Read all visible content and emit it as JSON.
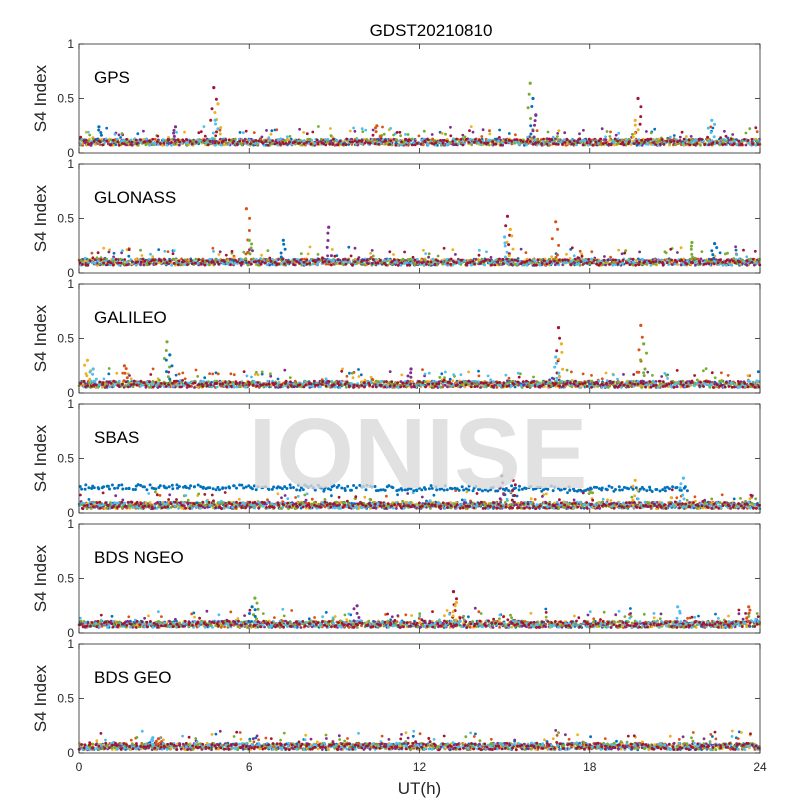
{
  "figure": {
    "title": "GDST20210810"
  },
  "watermark": "IONISE",
  "colors": {
    "series": [
      "#0072BD",
      "#D95319",
      "#EDB120",
      "#7E2F8E",
      "#77AC30",
      "#4DBEEE",
      "#A2142F"
    ],
    "axis": "#262626",
    "watermark": "#d9d9d9"
  },
  "chart_data": [
    {
      "type": "scatter",
      "panel": "GPS",
      "label": "GPS",
      "ylabel": "S4 Index",
      "xlim": [
        0,
        24
      ],
      "ylim": [
        0,
        1
      ],
      "yticks": [
        "0",
        "0.5",
        "1"
      ],
      "baseline": 0.1,
      "spikes": [
        {
          "x": 0.7,
          "y": 0.24
        },
        {
          "x": 3.4,
          "y": 0.24
        },
        {
          "x": 4.75,
          "y": 0.6
        },
        {
          "x": 4.9,
          "y": 0.45
        },
        {
          "x": 4.8,
          "y": 0.3
        },
        {
          "x": 10.5,
          "y": 0.25
        },
        {
          "x": 15.9,
          "y": 0.64
        },
        {
          "x": 16.0,
          "y": 0.5
        },
        {
          "x": 16.1,
          "y": 0.35
        },
        {
          "x": 19.7,
          "y": 0.5
        },
        {
          "x": 19.6,
          "y": 0.3
        },
        {
          "x": 22.3,
          "y": 0.3
        }
      ]
    },
    {
      "type": "scatter",
      "panel": "GLONASS",
      "label": "GLONASS",
      "ylabel": "S4 Index",
      "xlim": [
        0,
        24
      ],
      "ylim": [
        0,
        1
      ],
      "yticks": [
        "0",
        "0.5",
        "1"
      ],
      "baseline": 0.1,
      "spikes": [
        {
          "x": 5.9,
          "y": 0.59
        },
        {
          "x": 6.0,
          "y": 0.3
        },
        {
          "x": 7.2,
          "y": 0.3
        },
        {
          "x": 8.8,
          "y": 0.42
        },
        {
          "x": 15.1,
          "y": 0.52
        },
        {
          "x": 15.2,
          "y": 0.4
        },
        {
          "x": 15.0,
          "y": 0.33
        },
        {
          "x": 16.8,
          "y": 0.47
        },
        {
          "x": 21.6,
          "y": 0.28
        },
        {
          "x": 22.4,
          "y": 0.27
        }
      ]
    },
    {
      "type": "scatter",
      "panel": "GALILEO",
      "label": "GALILEO",
      "ylabel": "S4 Index",
      "xlim": [
        0,
        24
      ],
      "ylim": [
        0,
        1
      ],
      "yticks": [
        "0",
        "0.5",
        "1"
      ],
      "baseline": 0.08,
      "spikes": [
        {
          "x": 0.3,
          "y": 0.3
        },
        {
          "x": 0.5,
          "y": 0.22
        },
        {
          "x": 1.6,
          "y": 0.25
        },
        {
          "x": 3.1,
          "y": 0.47
        },
        {
          "x": 3.2,
          "y": 0.35
        },
        {
          "x": 11.7,
          "y": 0.22
        },
        {
          "x": 16.9,
          "y": 0.6
        },
        {
          "x": 17.0,
          "y": 0.45
        },
        {
          "x": 16.8,
          "y": 0.33
        },
        {
          "x": 19.8,
          "y": 0.62
        },
        {
          "x": 19.9,
          "y": 0.45
        }
      ]
    },
    {
      "type": "scatter",
      "panel": "SBAS",
      "label": "SBAS",
      "ylabel": "S4 Index",
      "xlim": [
        0,
        24
      ],
      "ylim": [
        0,
        1
      ],
      "yticks": [
        "0",
        "0.5",
        "1"
      ],
      "baseline": 0.07,
      "bands": [
        {
          "series": 0,
          "from": 0,
          "to": 21.5,
          "level_start": 0.24,
          "level_end": 0.22
        }
      ],
      "spikes": [
        {
          "x": 14.9,
          "y": 0.34
        },
        {
          "x": 15.3,
          "y": 0.3
        },
        {
          "x": 19.6,
          "y": 0.3
        },
        {
          "x": 21.3,
          "y": 0.32
        }
      ]
    },
    {
      "type": "scatter",
      "panel": "BDS NGEO",
      "label": "BDS NGEO",
      "ylabel": "S4 Index",
      "xlim": [
        0,
        24
      ],
      "ylim": [
        0,
        1
      ],
      "yticks": [
        "0",
        "0.5",
        "1"
      ],
      "baseline": 0.08,
      "spikes": [
        {
          "x": 6.2,
          "y": 0.32
        },
        {
          "x": 6.1,
          "y": 0.24
        },
        {
          "x": 9.8,
          "y": 0.25
        },
        {
          "x": 13.2,
          "y": 0.38
        },
        {
          "x": 13.3,
          "y": 0.28
        },
        {
          "x": 21.1,
          "y": 0.24
        },
        {
          "x": 23.6,
          "y": 0.24
        }
      ]
    },
    {
      "type": "scatter",
      "panel": "BDS GEO",
      "label": "BDS GEO",
      "ylabel": "S4 Index",
      "xlim": [
        0,
        24
      ],
      "ylim": [
        0,
        1
      ],
      "yticks": [
        "0",
        "0.5",
        "1"
      ],
      "baseline": 0.06,
      "spikes": [
        {
          "x": 2.6,
          "y": 0.14
        },
        {
          "x": 2.8,
          "y": 0.13
        }
      ],
      "xticks": [
        "0",
        "6",
        "12",
        "18",
        "24"
      ],
      "xlabel": "UT(h)"
    }
  ]
}
